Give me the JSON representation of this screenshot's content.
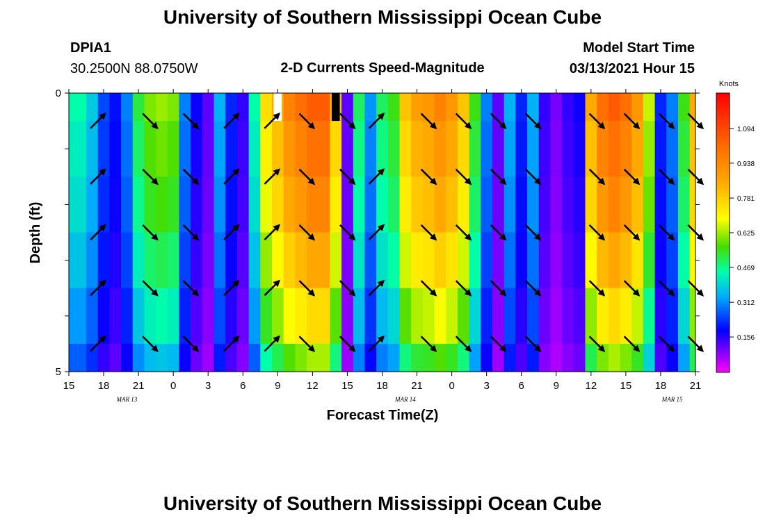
{
  "header": {
    "title_top": "University of Southern Mississippi Ocean Cube",
    "title_bottom": "University of Southern Mississippi Ocean Cube",
    "station_id": "DPIA1",
    "station_coords": "30.2500N 88.0750W",
    "plot_title": "2-D Currents Speed-Magnitude",
    "model_start_label": "Model Start Time",
    "model_start_value": "03/13/2021 Hour 15"
  },
  "chart_data": {
    "type": "heatmap",
    "title": "2-D Currents Speed-Magnitude",
    "xlabel": "Forecast Time(Z)",
    "ylabel": "Depth (ft)",
    "y_range": [
      0,
      5
    ],
    "y_tick_labels": [
      "0",
      "5"
    ],
    "x_hour_range": [
      15,
      69
    ],
    "x_tick_hours": [
      15,
      18,
      21,
      24,
      27,
      30,
      33,
      36,
      39,
      42,
      45,
      48,
      51,
      54,
      57,
      60,
      63,
      66,
      69
    ],
    "x_tick_labels": [
      "15",
      "18",
      "21",
      "0",
      "3",
      "6",
      "9",
      "12",
      "15",
      "18",
      "21",
      "0",
      "3",
      "6",
      "9",
      "12",
      "15",
      "18",
      "21"
    ],
    "date_labels": [
      {
        "hour": 20,
        "text": "MAR 13"
      },
      {
        "hour": 44,
        "text": "MAR 14"
      },
      {
        "hour": 67,
        "text": "MAR 15"
      }
    ],
    "colorbar": {
      "unit": "Knots",
      "min": 0.0,
      "max": 1.25,
      "tick_values": [
        1.094,
        0.938,
        0.781,
        0.625,
        0.469,
        0.312,
        0.156
      ],
      "tick_labels": [
        "1.094",
        "0.938",
        "0.781",
        "0.625",
        "0.469",
        "0.312",
        "0.156"
      ]
    },
    "depth_levels": 5,
    "column_hours": [
      15,
      16,
      17,
      18,
      19,
      20,
      21,
      22,
      23,
      24,
      25,
      26,
      27,
      28,
      29,
      30,
      31,
      32,
      33,
      34,
      35,
      36,
      37,
      38,
      39,
      40,
      41,
      42,
      43,
      44,
      45,
      46,
      47,
      48,
      49,
      50,
      51,
      52,
      53,
      54,
      55,
      56,
      57,
      58,
      59,
      60,
      61,
      62,
      63,
      64,
      65,
      66,
      67,
      68,
      69
    ],
    "surface_speed": [
      0.45,
      0.45,
      0.38,
      0.25,
      0.2,
      0.3,
      0.52,
      0.6,
      0.62,
      0.6,
      0.3,
      0.18,
      0.12,
      0.35,
      0.22,
      0.15,
      0.45,
      0.75,
      0.85,
      0.95,
      1.0,
      1.05,
      1.05,
      0.8,
      0.12,
      0.5,
      0.32,
      0.5,
      0.55,
      0.8,
      0.88,
      0.9,
      0.95,
      0.9,
      0.8,
      0.55,
      0.3,
      0.12,
      0.35,
      0.22,
      0.35,
      0.15,
      0.1,
      0.15,
      0.18,
      0.85,
      1.0,
      1.05,
      1.0,
      0.9,
      0.65,
      0.22,
      0.3,
      0.55,
      0.85
    ],
    "depth_factors": [
      1.0,
      0.95,
      0.9,
      0.82,
      0.72,
      0.6
    ],
    "gap_cells": [
      {
        "hour": 33,
        "depth": 0,
        "color": "white"
      },
      {
        "hour": 38,
        "depth": 0,
        "color": "black"
      }
    ],
    "vector_hours": [
      17.5,
      22,
      25.5,
      29,
      32.5,
      35.5,
      39,
      41.5,
      46,
      49,
      52,
      55,
      60.5,
      63.5,
      66.5,
      69
    ],
    "vector_depths": [
      0.5,
      1.5,
      2.5,
      3.5,
      4.5
    ],
    "vector_directions_deg": [
      [
        -45,
        45,
        45,
        -45,
        -45,
        45,
        45,
        -45,
        45,
        45,
        45,
        45,
        45,
        45,
        45,
        45
      ],
      [
        -45,
        45,
        45,
        -45,
        -45,
        45,
        45,
        -45,
        45,
        45,
        45,
        45,
        45,
        45,
        45,
        45
      ],
      [
        -45,
        45,
        45,
        -45,
        -45,
        45,
        45,
        -45,
        45,
        45,
        45,
        45,
        45,
        45,
        45,
        45
      ],
      [
        -45,
        45,
        45,
        -45,
        -45,
        45,
        45,
        -45,
        45,
        45,
        45,
        45,
        45,
        45,
        45,
        45
      ],
      [
        -45,
        45,
        45,
        -45,
        -45,
        45,
        45,
        -45,
        45,
        45,
        45,
        45,
        45,
        45,
        45,
        45
      ]
    ]
  }
}
